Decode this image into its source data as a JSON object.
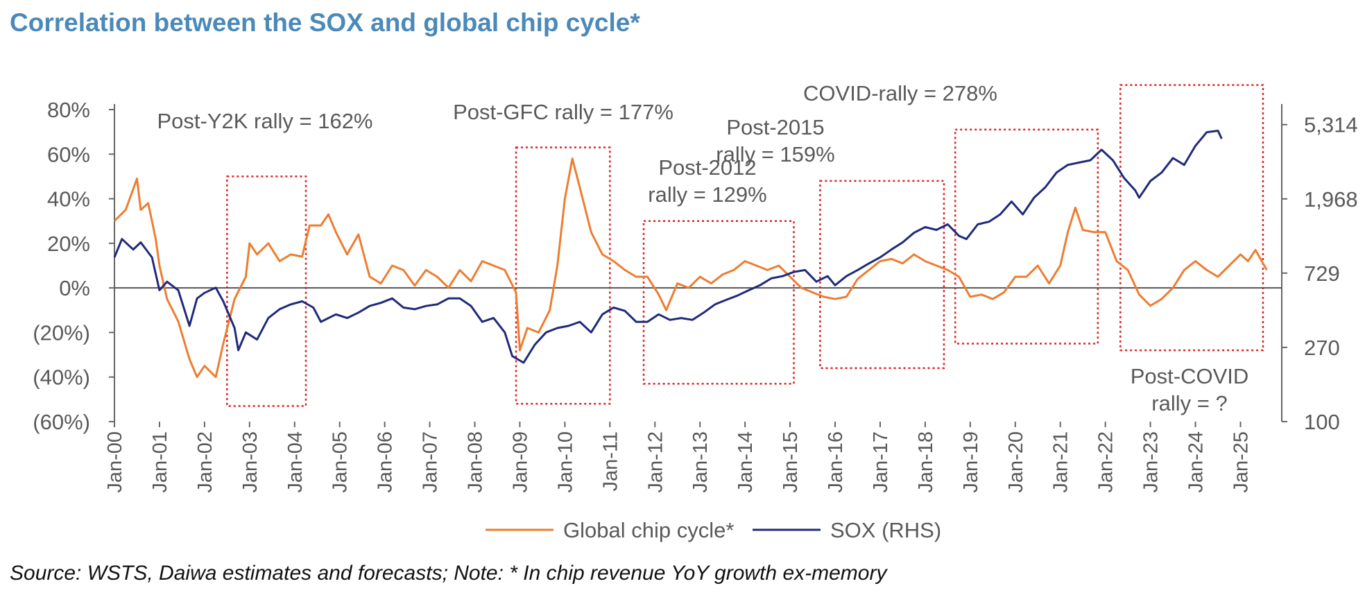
{
  "title": "Correlation between the SOX and global chip cycle*",
  "source": "Source: WSTS, Daiwa estimates and forecasts; Note: * In chip revenue YoY growth ex-memory",
  "chart_data": {
    "type": "line",
    "y_left": {
      "ticks": [
        80,
        60,
        40,
        20,
        0,
        -20,
        -40,
        -60
      ],
      "tick_labels": [
        "80%",
        "60%",
        "40%",
        "20%",
        "0%",
        "(20%)",
        "(40%)",
        "(60%)"
      ],
      "range": [
        -60,
        80
      ]
    },
    "y_right": {
      "scale": "log",
      "range": [
        100,
        6500
      ],
      "ticks": [
        5314,
        1968,
        729,
        270,
        100
      ],
      "tick_labels": [
        "5,314",
        "1,968",
        "729",
        "270",
        "100"
      ]
    },
    "x_ticks": [
      "Jan-00",
      "Jan-01",
      "Jan-02",
      "Jan-03",
      "Jan-04",
      "Jan-05",
      "Jan-06",
      "Jan-07",
      "Jan-08",
      "Jan-09",
      "Jan-10",
      "Jan-11",
      "Jan-12",
      "Jan-13",
      "Jan-14",
      "Jan-15",
      "Jan-16",
      "Jan-17",
      "Jan-18",
      "Jan-19",
      "Jan-20",
      "Jan-21",
      "Jan-22",
      "Jan-23",
      "Jan-24",
      "Jan-25"
    ],
    "series": [
      {
        "name": "Global chip cycle*",
        "axis": "left",
        "color": "#ed7d31",
        "points": [
          [
            "2000-01",
            30
          ],
          [
            "2000-04",
            35
          ],
          [
            "2000-07",
            49
          ],
          [
            "2000-08",
            35
          ],
          [
            "2000-10",
            38
          ],
          [
            "2000-12",
            22
          ],
          [
            "2001-01",
            10
          ],
          [
            "2001-03",
            -5
          ],
          [
            "2001-06",
            -15
          ],
          [
            "2001-09",
            -32
          ],
          [
            "2001-11",
            -40
          ],
          [
            "2002-01",
            -35
          ],
          [
            "2002-04",
            -40
          ],
          [
            "2002-06",
            -25
          ],
          [
            "2002-09",
            -5
          ],
          [
            "2002-12",
            5
          ],
          [
            "2003-01",
            20
          ],
          [
            "2003-03",
            15
          ],
          [
            "2003-06",
            20
          ],
          [
            "2003-09",
            12
          ],
          [
            "2003-12",
            15
          ],
          [
            "2004-03",
            14
          ],
          [
            "2004-05",
            28
          ],
          [
            "2004-08",
            28
          ],
          [
            "2004-10",
            33
          ],
          [
            "2004-12",
            25
          ],
          [
            "2005-03",
            15
          ],
          [
            "2005-06",
            24
          ],
          [
            "2005-09",
            5
          ],
          [
            "2005-12",
            2
          ],
          [
            "2006-03",
            10
          ],
          [
            "2006-06",
            8
          ],
          [
            "2006-09",
            1
          ],
          [
            "2006-12",
            8
          ],
          [
            "2007-03",
            5
          ],
          [
            "2007-06",
            0
          ],
          [
            "2007-09",
            8
          ],
          [
            "2007-12",
            3
          ],
          [
            "2008-03",
            12
          ],
          [
            "2008-06",
            10
          ],
          [
            "2008-09",
            8
          ],
          [
            "2008-12",
            -2
          ],
          [
            "2009-01",
            -28
          ],
          [
            "2009-03",
            -18
          ],
          [
            "2009-06",
            -20
          ],
          [
            "2009-09",
            -10
          ],
          [
            "2009-11",
            10
          ],
          [
            "2010-01",
            40
          ],
          [
            "2010-03",
            58
          ],
          [
            "2010-05",
            45
          ],
          [
            "2010-08",
            25
          ],
          [
            "2010-11",
            15
          ],
          [
            "2011-02",
            12
          ],
          [
            "2011-05",
            8
          ],
          [
            "2011-08",
            5
          ],
          [
            "2011-11",
            5
          ],
          [
            "2012-02",
            -3
          ],
          [
            "2012-04",
            -10
          ],
          [
            "2012-07",
            2
          ],
          [
            "2012-10",
            0
          ],
          [
            "2013-01",
            5
          ],
          [
            "2013-04",
            2
          ],
          [
            "2013-07",
            6
          ],
          [
            "2013-10",
            8
          ],
          [
            "2014-01",
            12
          ],
          [
            "2014-04",
            10
          ],
          [
            "2014-07",
            8
          ],
          [
            "2014-10",
            10
          ],
          [
            "2015-01",
            5
          ],
          [
            "2015-04",
            0
          ],
          [
            "2015-07",
            -2
          ],
          [
            "2015-10",
            -4
          ],
          [
            "2016-01",
            -5
          ],
          [
            "2016-04",
            -4
          ],
          [
            "2016-07",
            4
          ],
          [
            "2016-10",
            8
          ],
          [
            "2017-01",
            12
          ],
          [
            "2017-04",
            13
          ],
          [
            "2017-07",
            11
          ],
          [
            "2017-10",
            15
          ],
          [
            "2018-01",
            12
          ],
          [
            "2018-04",
            10
          ],
          [
            "2018-07",
            8
          ],
          [
            "2018-10",
            5
          ],
          [
            "2019-01",
            -4
          ],
          [
            "2019-04",
            -3
          ],
          [
            "2019-07",
            -5
          ],
          [
            "2019-10",
            -2
          ],
          [
            "2020-01",
            5
          ],
          [
            "2020-04",
            5
          ],
          [
            "2020-07",
            10
          ],
          [
            "2020-10",
            2
          ],
          [
            "2021-01",
            10
          ],
          [
            "2021-03",
            25
          ],
          [
            "2021-05",
            36
          ],
          [
            "2021-07",
            26
          ],
          [
            "2021-10",
            25
          ],
          [
            "2022-01",
            25
          ],
          [
            "2022-04",
            12
          ],
          [
            "2022-07",
            8
          ],
          [
            "2022-10",
            -3
          ],
          [
            "2023-01",
            -8
          ],
          [
            "2023-04",
            -5
          ],
          [
            "2023-07",
            0
          ],
          [
            "2023-10",
            8
          ],
          [
            "2024-01",
            12
          ],
          [
            "2024-04",
            8
          ],
          [
            "2024-07",
            5
          ],
          [
            "2024-10",
            10
          ],
          [
            "2025-01",
            15
          ],
          [
            "2025-03",
            12
          ],
          [
            "2025-05",
            17
          ],
          [
            "2025-08",
            8
          ]
        ]
      },
      {
        "name": "SOX (RHS)",
        "axis": "right",
        "color": "#1f2a7a",
        "points": [
          [
            "2000-01",
            900
          ],
          [
            "2000-03",
            1150
          ],
          [
            "2000-06",
            1000
          ],
          [
            "2000-08",
            1100
          ],
          [
            "2000-11",
            900
          ],
          [
            "2001-01",
            580
          ],
          [
            "2001-03",
            650
          ],
          [
            "2001-06",
            580
          ],
          [
            "2001-09",
            360
          ],
          [
            "2001-11",
            520
          ],
          [
            "2002-01",
            560
          ],
          [
            "2002-04",
            600
          ],
          [
            "2002-06",
            500
          ],
          [
            "2002-09",
            350
          ],
          [
            "2002-10",
            260
          ],
          [
            "2002-12",
            330
          ],
          [
            "2003-03",
            300
          ],
          [
            "2003-06",
            400
          ],
          [
            "2003-09",
            450
          ],
          [
            "2003-12",
            480
          ],
          [
            "2004-03",
            500
          ],
          [
            "2004-06",
            460
          ],
          [
            "2004-08",
            380
          ],
          [
            "2004-12",
            420
          ],
          [
            "2005-03",
            400
          ],
          [
            "2005-06",
            430
          ],
          [
            "2005-09",
            470
          ],
          [
            "2005-12",
            490
          ],
          [
            "2006-03",
            520
          ],
          [
            "2006-06",
            460
          ],
          [
            "2006-09",
            450
          ],
          [
            "2006-12",
            470
          ],
          [
            "2007-03",
            480
          ],
          [
            "2007-06",
            520
          ],
          [
            "2007-09",
            520
          ],
          [
            "2007-12",
            470
          ],
          [
            "2008-03",
            380
          ],
          [
            "2008-06",
            400
          ],
          [
            "2008-09",
            330
          ],
          [
            "2008-11",
            240
          ],
          [
            "2009-02",
            220
          ],
          [
            "2009-05",
            280
          ],
          [
            "2009-08",
            330
          ],
          [
            "2009-11",
            350
          ],
          [
            "2010-02",
            360
          ],
          [
            "2010-05",
            380
          ],
          [
            "2010-08",
            330
          ],
          [
            "2010-11",
            420
          ],
          [
            "2011-02",
            460
          ],
          [
            "2011-05",
            440
          ],
          [
            "2011-08",
            380
          ],
          [
            "2011-11",
            380
          ],
          [
            "2012-02",
            420
          ],
          [
            "2012-05",
            390
          ],
          [
            "2012-08",
            400
          ],
          [
            "2012-11",
            390
          ],
          [
            "2013-02",
            430
          ],
          [
            "2013-05",
            480
          ],
          [
            "2013-08",
            510
          ],
          [
            "2013-11",
            540
          ],
          [
            "2014-02",
            580
          ],
          [
            "2014-05",
            620
          ],
          [
            "2014-08",
            680
          ],
          [
            "2014-11",
            700
          ],
          [
            "2015-02",
            740
          ],
          [
            "2015-05",
            760
          ],
          [
            "2015-08",
            650
          ],
          [
            "2015-11",
            700
          ],
          [
            "2016-01",
            620
          ],
          [
            "2016-04",
            700
          ],
          [
            "2016-07",
            760
          ],
          [
            "2016-10",
            830
          ],
          [
            "2017-01",
            900
          ],
          [
            "2017-04",
            1000
          ],
          [
            "2017-07",
            1100
          ],
          [
            "2017-10",
            1250
          ],
          [
            "2018-01",
            1350
          ],
          [
            "2018-04",
            1300
          ],
          [
            "2018-07",
            1400
          ],
          [
            "2018-10",
            1200
          ],
          [
            "2018-12",
            1150
          ],
          [
            "2019-03",
            1400
          ],
          [
            "2019-06",
            1450
          ],
          [
            "2019-09",
            1600
          ],
          [
            "2019-12",
            1900
          ],
          [
            "2020-03",
            1600
          ],
          [
            "2020-06",
            2000
          ],
          [
            "2020-09",
            2300
          ],
          [
            "2020-12",
            2800
          ],
          [
            "2021-03",
            3100
          ],
          [
            "2021-06",
            3200
          ],
          [
            "2021-09",
            3300
          ],
          [
            "2021-12",
            3800
          ],
          [
            "2022-03",
            3300
          ],
          [
            "2022-06",
            2600
          ],
          [
            "2022-09",
            2200
          ],
          [
            "2022-10",
            2000
          ],
          [
            "2023-01",
            2500
          ],
          [
            "2023-04",
            2800
          ],
          [
            "2023-07",
            3400
          ],
          [
            "2023-10",
            3100
          ],
          [
            "2024-01",
            4000
          ],
          [
            "2024-04",
            4800
          ],
          [
            "2024-07",
            4900
          ],
          [
            "2024-08",
            4400
          ]
        ]
      }
    ],
    "annotations": [
      {
        "text": [
          "Post-Y2K  rally = 162%"
        ],
        "box": [
          "2002-07",
          "2004-04",
          50,
          -53
        ]
      },
      {
        "text": [
          "Post-GFC  rally = 177%"
        ],
        "box": [
          "2008-12",
          "2011-01",
          63,
          -52
        ]
      },
      {
        "text": [
          "Post-2012",
          "rally = 129%"
        ],
        "box": [
          "2011-10",
          "2015-02",
          30,
          -43
        ]
      },
      {
        "text": [
          "Post-2015",
          "rally = 159%"
        ],
        "box": [
          "2015-09",
          "2018-06",
          48,
          -36
        ]
      },
      {
        "text": [
          "COVID-rally = 278%"
        ],
        "box": [
          "2018-09",
          "2021-11",
          71,
          -25
        ]
      },
      {
        "text": [
          "Post-COVID",
          "rally = ?"
        ],
        "box": [
          "2022-05",
          "2025-07",
          91,
          -28
        ]
      }
    ],
    "legend": {
      "placement": "bottom"
    }
  }
}
